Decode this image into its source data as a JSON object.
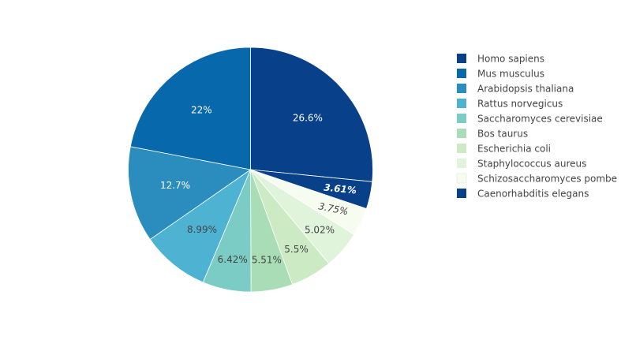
{
  "chart_data": {
    "type": "pie",
    "legend_position": "right",
    "slices": [
      {
        "label": "Homo sapiens",
        "value": 26.6,
        "value_label": "26.6%",
        "color": "#08408a",
        "label_color": "#ffffff"
      },
      {
        "label": "Caenorhabditis elegans",
        "value": 3.61,
        "value_label": "3.61%",
        "color": "#08408a",
        "label_color": "#ffffff"
      },
      {
        "label": "Schizosaccharomyces pombe",
        "value": 3.75,
        "value_label": "3.75%",
        "color": "#f7fcf0",
        "label_color": "#444444"
      },
      {
        "label": "Staphylococcus aureus",
        "value": 5.02,
        "value_label": "5.02%",
        "color": "#e0f3db",
        "label_color": "#444444"
      },
      {
        "label": "Escherichia coli",
        "value": 5.5,
        "value_label": "5.5%",
        "color": "#ccebc5",
        "label_color": "#444444"
      },
      {
        "label": "Bos taurus",
        "value": 5.51,
        "value_label": "5.51%",
        "color": "#a8ddb5",
        "label_color": "#444444"
      },
      {
        "label": "Saccharomyces cerevisiae",
        "value": 6.42,
        "value_label": "6.42%",
        "color": "#7bccc4",
        "label_color": "#444444"
      },
      {
        "label": "Rattus norvegicus",
        "value": 8.99,
        "value_label": "8.99%",
        "color": "#4eb3d3",
        "label_color": "#444444"
      },
      {
        "label": "Arabidopsis thaliana",
        "value": 12.7,
        "value_label": "12.7%",
        "color": "#2b8cbe",
        "label_color": "#ffffff"
      },
      {
        "label": "Mus musculus",
        "value": 22,
        "value_label": "22%",
        "color": "#0868ac",
        "label_color": "#ffffff"
      }
    ],
    "legend": [
      {
        "label": "Homo sapiens",
        "color": "#08408a"
      },
      {
        "label": "Mus musculus",
        "color": "#0868ac"
      },
      {
        "label": "Arabidopsis thaliana",
        "color": "#2b8cbe"
      },
      {
        "label": "Rattus norvegicus",
        "color": "#4eb3d3"
      },
      {
        "label": "Saccharomyces cerevisiae",
        "color": "#7bccc4"
      },
      {
        "label": "Bos taurus",
        "color": "#a8ddb5"
      },
      {
        "label": "Escherichia coli",
        "color": "#ccebc5"
      },
      {
        "label": "Staphylococcus aureus",
        "color": "#e0f3db"
      },
      {
        "label": "Schizosaccharomyces pombe",
        "color": "#f7fcf0"
      },
      {
        "label": "Caenorhabditis elegans",
        "color": "#08408a"
      }
    ]
  }
}
